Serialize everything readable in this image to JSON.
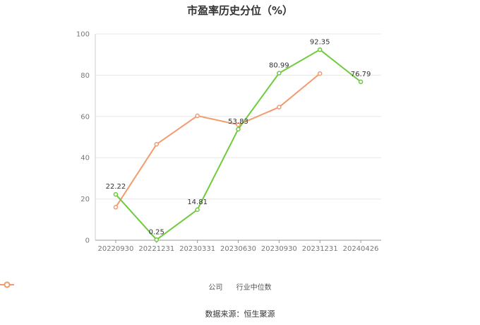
{
  "chart_data": {
    "type": "line",
    "title": "市盈率历史分位（%）",
    "xlabel": "",
    "ylabel": "",
    "categories": [
      "20220930",
      "20221231",
      "20230331",
      "20230630",
      "20230930",
      "20231231",
      "20240426"
    ],
    "ylim": [
      0,
      100
    ],
    "yticks": [
      0,
      20,
      40,
      60,
      80,
      100
    ],
    "grid": true,
    "legend_position": "bottom",
    "series": [
      {
        "name": "公司",
        "color": "#6ECB3C",
        "values": [
          22.22,
          0.25,
          14.81,
          53.83,
          80.99,
          92.35,
          76.79
        ],
        "labels": [
          "22.22",
          "0.25",
          "14.81",
          "53.83",
          "80.99",
          "92.35",
          "76.79"
        ]
      },
      {
        "name": "行业中位数",
        "color": "#F59A6E",
        "values": [
          16.0,
          46.5,
          60.3,
          56.0,
          64.5,
          80.8,
          null
        ]
      }
    ]
  },
  "source_text": "数据来源：恒生聚源"
}
